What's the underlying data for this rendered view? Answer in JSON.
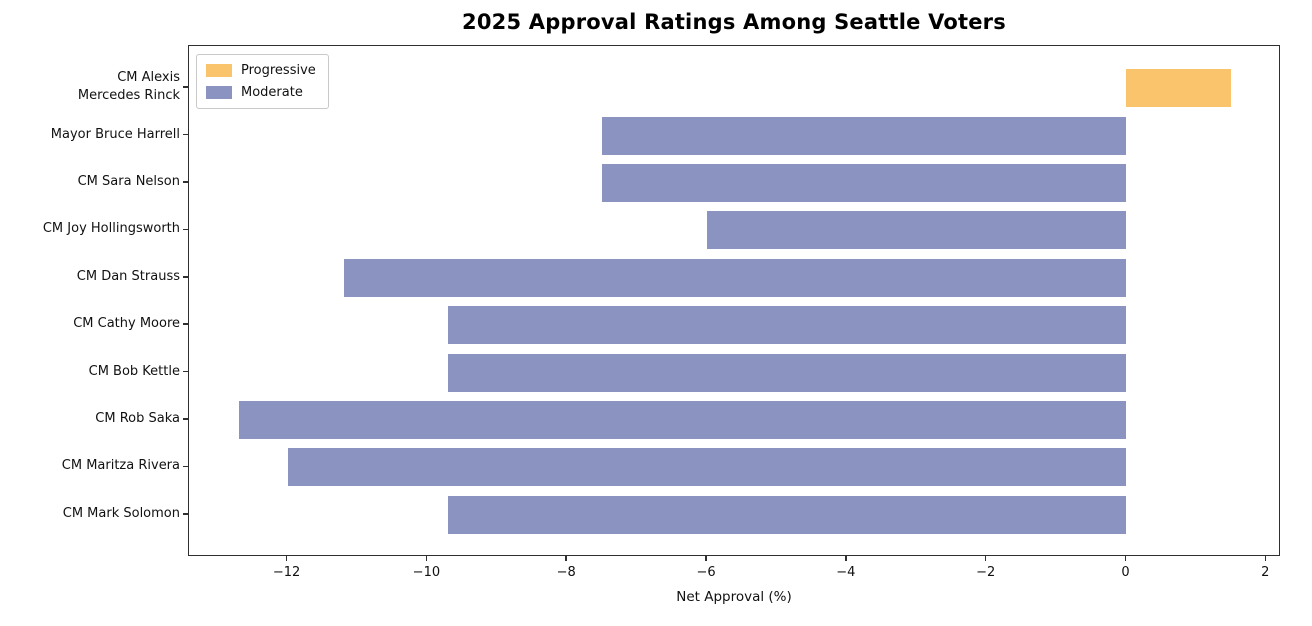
{
  "figure": {
    "title": "2025 Approval Ratings Among Seattle Voters",
    "xlabel": "Net Approval (%)"
  },
  "chart_data": {
    "type": "bar",
    "orientation": "horizontal",
    "title": "2025 Approval Ratings Among Seattle Voters",
    "xlabel": "Net Approval (%)",
    "ylabel": "",
    "xlim": [
      -13.41,
      2.21
    ],
    "grid": false,
    "legend_position": "upper left",
    "xticks": {
      "values": [
        -12,
        -10,
        -8,
        -6,
        -4,
        -2,
        0,
        2
      ],
      "labels": [
        "−12",
        "−10",
        "−8",
        "−6",
        "−4",
        "−2",
        "0",
        "2"
      ]
    },
    "categories": [
      {
        "label": "CM Alexis Mercedes Rinck",
        "lines": [
          "CM Alexis",
          "Mercedes Rinck"
        ],
        "value": 1.5,
        "group": "Progressive"
      },
      {
        "label": "Mayor Bruce Harrell",
        "lines": [
          "Mayor Bruce Harrell"
        ],
        "value": -7.5,
        "group": "Moderate"
      },
      {
        "label": "CM Sara Nelson",
        "lines": [
          "CM Sara Nelson"
        ],
        "value": -7.5,
        "group": "Moderate"
      },
      {
        "label": "CM Joy Hollingsworth",
        "lines": [
          "CM Joy Hollingsworth"
        ],
        "value": -6.0,
        "group": "Moderate"
      },
      {
        "label": "CM Dan Strauss",
        "lines": [
          "CM Dan Strauss"
        ],
        "value": -11.2,
        "group": "Moderate"
      },
      {
        "label": "CM Cathy Moore",
        "lines": [
          "CM Cathy Moore"
        ],
        "value": -9.7,
        "group": "Moderate"
      },
      {
        "label": "CM Bob Kettle",
        "lines": [
          "CM Bob Kettle"
        ],
        "value": -9.7,
        "group": "Moderate"
      },
      {
        "label": "CM Rob Saka",
        "lines": [
          "CM Rob Saka"
        ],
        "value": -12.7,
        "group": "Moderate"
      },
      {
        "label": "CM Maritza Rivera",
        "lines": [
          "CM Maritza Rivera"
        ],
        "value": -12.0,
        "group": "Moderate"
      },
      {
        "label": "CM Mark Solomon",
        "lines": [
          "CM Mark Solomon"
        ],
        "value": -9.7,
        "group": "Moderate"
      }
    ],
    "legend": [
      {
        "label": "Progressive",
        "color": "#f9c46b"
      },
      {
        "label": "Moderate",
        "color": "#8b94c1"
      }
    ],
    "colors": {
      "Progressive": "#f9c46b",
      "Moderate": "#8b94c1",
      "axis": "#2f2f2f",
      "text": "#111111",
      "background": "#ffffff"
    }
  }
}
